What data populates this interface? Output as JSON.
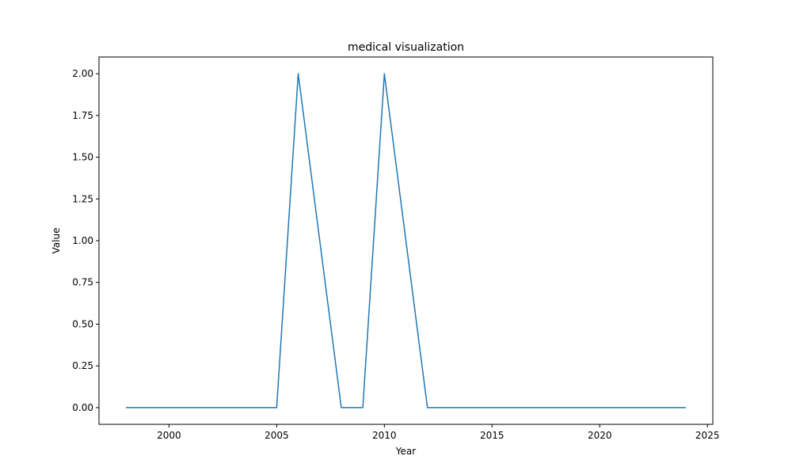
{
  "chart_data": {
    "type": "line",
    "title": "medical visualization",
    "xlabel": "Year",
    "ylabel": "Value",
    "xlim": [
      1996.75,
      2025.25
    ],
    "ylim": [
      -0.1,
      2.1
    ],
    "xticks": [
      2000,
      2005,
      2010,
      2015,
      2020,
      2025
    ],
    "xtick_labels": [
      "2000",
      "2005",
      "2010",
      "2015",
      "2020",
      "2025"
    ],
    "yticks": [
      0,
      0.25,
      0.5,
      0.75,
      1.0,
      1.25,
      1.5,
      1.75,
      2.0
    ],
    "ytick_labels": [
      "0.00",
      "0.25",
      "0.50",
      "0.75",
      "1.00",
      "1.25",
      "1.50",
      "1.75",
      "2.00"
    ],
    "grid": false,
    "series": [
      {
        "color": "#1f77b4",
        "x": [
          1998,
          1999,
          2000,
          2001,
          2002,
          2003,
          2004,
          2005,
          2006,
          2007,
          2008,
          2009,
          2010,
          2011,
          2012,
          2013,
          2014,
          2015,
          2016,
          2017,
          2018,
          2019,
          2020,
          2021,
          2022,
          2023,
          2024
        ],
        "y": [
          0,
          0,
          0,
          0,
          0,
          0,
          0,
          0,
          2,
          1,
          0,
          0,
          2,
          1,
          0,
          0,
          0,
          0,
          0,
          0,
          0,
          0,
          0,
          0,
          0,
          0,
          0
        ]
      }
    ]
  }
}
